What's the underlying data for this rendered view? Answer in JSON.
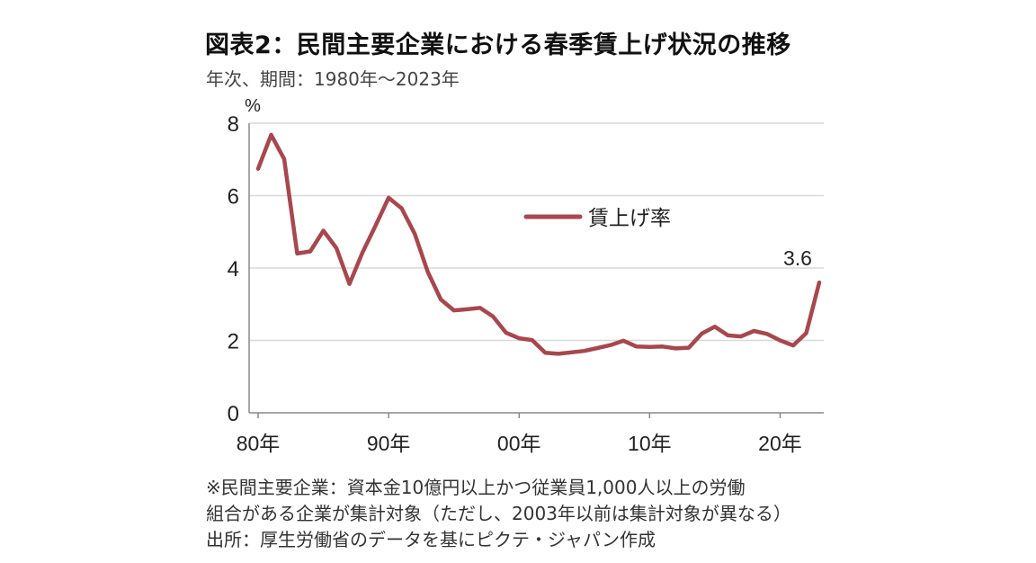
{
  "header": {
    "title": "図表2：民間主要企業における春季賃上げ状況の推移",
    "subtitle": "年次、期間：1980年～2023年"
  },
  "footnotes": {
    "line1": "※民間主要企業：資本金10億円以上かつ従業員1,000人以上の労働",
    "line2": "組合がある企業が集計対象（ただし、2003年以前は集計対象が異なる）",
    "source": "出所：厚生労働省のデータを基にピクテ・ジャパン作成"
  },
  "colors": {
    "series": "#a8474d",
    "grid": "#d9d9d9",
    "axis": "#8a8a8a"
  },
  "chart_data": {
    "type": "line",
    "ylabel": "%",
    "ylim": [
      0,
      8
    ],
    "yticks": [
      "0",
      "2",
      "4",
      "6",
      "8"
    ],
    "xlim": [
      1980,
      2023
    ],
    "xticks": [
      {
        "value": 1980,
        "label": "80年"
      },
      {
        "value": 1990,
        "label": "90年"
      },
      {
        "value": 2000,
        "label": "00年"
      },
      {
        "value": 2010,
        "label": "10年"
      },
      {
        "value": 2020,
        "label": "20年"
      }
    ],
    "grid": true,
    "legend_position": "center-top",
    "series": [
      {
        "name": "賃上げ率",
        "x": [
          1980,
          1981,
          1982,
          1983,
          1984,
          1985,
          1986,
          1987,
          1988,
          1989,
          1990,
          1991,
          1992,
          1993,
          1994,
          1995,
          1996,
          1997,
          1998,
          1999,
          2000,
          2001,
          2002,
          2003,
          2004,
          2005,
          2006,
          2007,
          2008,
          2009,
          2010,
          2011,
          2012,
          2013,
          2014,
          2015,
          2016,
          2017,
          2018,
          2019,
          2020,
          2021,
          2022,
          2023
        ],
        "values": [
          6.74,
          7.68,
          7.01,
          4.4,
          4.46,
          5.03,
          4.55,
          3.56,
          4.43,
          5.17,
          5.94,
          5.65,
          4.95,
          3.89,
          3.13,
          2.83,
          2.86,
          2.9,
          2.66,
          2.21,
          2.06,
          2.01,
          1.66,
          1.63,
          1.67,
          1.71,
          1.79,
          1.87,
          1.99,
          1.83,
          1.82,
          1.83,
          1.78,
          1.8,
          2.19,
          2.38,
          2.14,
          2.11,
          2.26,
          2.18,
          2.0,
          1.86,
          2.2,
          3.6
        ]
      }
    ],
    "annotations": [
      {
        "x": 2023,
        "y": 3.6,
        "text": "3.6"
      }
    ]
  }
}
